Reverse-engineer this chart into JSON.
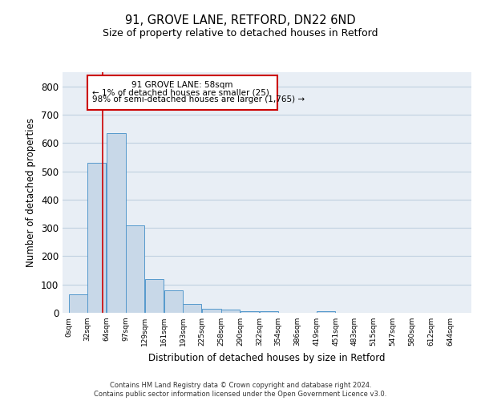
{
  "title1": "91, GROVE LANE, RETFORD, DN22 6ND",
  "title2": "Size of property relative to detached houses in Retford",
  "xlabel": "Distribution of detached houses by size in Retford",
  "ylabel": "Number of detached properties",
  "bar_values": [
    65,
    530,
    635,
    310,
    120,
    80,
    30,
    15,
    10,
    5,
    5,
    0,
    0,
    5,
    0,
    0,
    0,
    0,
    0,
    0
  ],
  "bar_left_edges": [
    0,
    32,
    64,
    97,
    129,
    161,
    193,
    225,
    258,
    290,
    322,
    354,
    386,
    419,
    451,
    483,
    515,
    547,
    580,
    612
  ],
  "bar_widths": [
    32,
    32,
    33,
    32,
    32,
    32,
    32,
    33,
    32,
    32,
    32,
    32,
    33,
    32,
    32,
    32,
    32,
    33,
    32,
    32
  ],
  "xtick_labels": [
    "0sqm",
    "32sqm",
    "64sqm",
    "97sqm",
    "129sqm",
    "161sqm",
    "193sqm",
    "225sqm",
    "258sqm",
    "290sqm",
    "322sqm",
    "354sqm",
    "386sqm",
    "419sqm",
    "451sqm",
    "483sqm",
    "515sqm",
    "547sqm",
    "580sqm",
    "612sqm",
    "644sqm"
  ],
  "xtick_positions": [
    0,
    32,
    64,
    97,
    129,
    161,
    193,
    225,
    258,
    290,
    322,
    354,
    386,
    419,
    451,
    483,
    515,
    547,
    580,
    612,
    644
  ],
  "ylim": [
    0,
    850
  ],
  "xlim": [
    -10,
    680
  ],
  "bar_color": "#c8d8e8",
  "bar_edge_color": "#5599cc",
  "grid_color": "#c0d0e0",
  "background_color": "#e8eef5",
  "property_line_x": 58,
  "property_line_color": "#cc0000",
  "annotation_line1": "91 GROVE LANE: 58sqm",
  "annotation_line2": "← 1% of detached houses are smaller (25)",
  "annotation_line3": "98% of semi-detached houses are larger (1,765) →",
  "annotation_box_color": "#cc0000",
  "yticks": [
    0,
    100,
    200,
    300,
    400,
    500,
    600,
    700,
    800
  ],
  "footnote1": "Contains HM Land Registry data © Crown copyright and database right 2024.",
  "footnote2": "Contains public sector information licensed under the Open Government Licence v3.0."
}
